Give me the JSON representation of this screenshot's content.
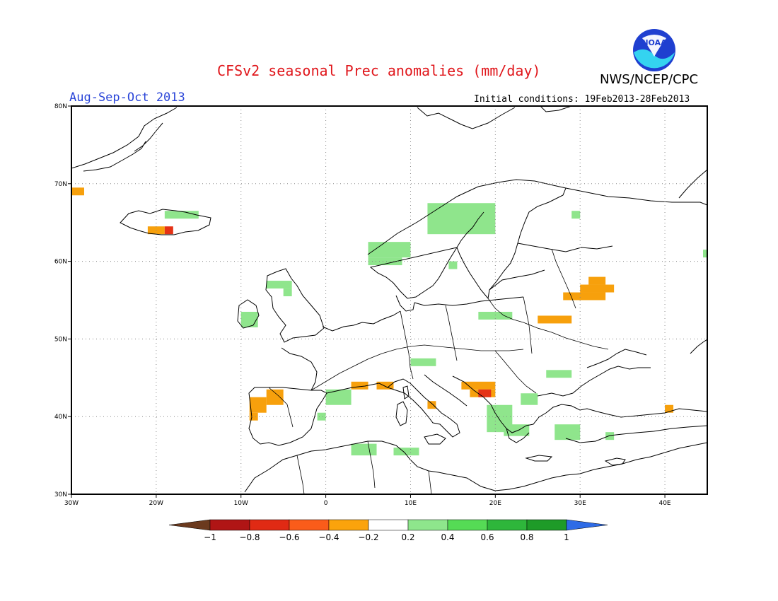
{
  "header": {
    "title": "CFSv2 seasonal Prec anomalies (mm/day)",
    "agency": "NWS/NCEP/CPC",
    "logo_text": "NOAA",
    "period": "Aug-Sep-Oct 2013",
    "initial_conditions": "Initial conditions: 19Feb2013-28Feb2013"
  },
  "map": {
    "projection": "lat-lon",
    "lon_range": [
      -30,
      45
    ],
    "lat_range": [
      30,
      80
    ],
    "lat_ticks": [
      "80N",
      "70N",
      "60N",
      "50N",
      "40N",
      "30N"
    ],
    "lon_ticks": [
      "30W",
      "20W",
      "10W",
      "0",
      "10E",
      "20E",
      "30E",
      "40E"
    ],
    "gridlines": "dotted"
  },
  "colorbar": {
    "labels": [
      "-1",
      "-0.8",
      "-0.6",
      "-0.4",
      "-0.2",
      "0.2",
      "0.4",
      "0.6",
      "0.8",
      "1"
    ],
    "colors": [
      "#6b3a1e",
      "#b31414",
      "#e0240f",
      "#fa5a14",
      "#fba00a",
      "#ffffff",
      "#8ee68c",
      "#55db55",
      "#2db43a",
      "#1e9b28",
      "#2e6be6"
    ]
  },
  "chart_data": {
    "type": "heatmap",
    "variable": "Prec anomalies (mm/day)",
    "anomaly_cells": [
      {
        "lon": [
          -30,
          -28.5
        ],
        "lat": [
          68.5,
          69.5
        ],
        "class": "-0.4"
      },
      {
        "lon": [
          -21,
          -19
        ],
        "lat": [
          63.5,
          64.5
        ],
        "class": "-0.4"
      },
      {
        "lon": [
          -19,
          -18
        ],
        "lat": [
          63.5,
          64.5
        ],
        "class": "-0.6"
      },
      {
        "lon": [
          -19,
          -15
        ],
        "lat": [
          65.5,
          66.5
        ],
        "class": "0.2"
      },
      {
        "lon": [
          -7,
          -5
        ],
        "lat": [
          41.5,
          43.5
        ],
        "class": "-0.4"
      },
      {
        "lon": [
          -9,
          -7
        ],
        "lat": [
          40.5,
          42.5
        ],
        "class": "-0.4"
      },
      {
        "lon": [
          -9,
          -8
        ],
        "lat": [
          39.5,
          40.5
        ],
        "class": "-0.4"
      },
      {
        "lon": [
          3,
          5
        ],
        "lat": [
          43.5,
          44.5
        ],
        "class": "-0.4"
      },
      {
        "lon": [
          6,
          8
        ],
        "lat": [
          43.5,
          44.5
        ],
        "class": "-0.4"
      },
      {
        "lon": [
          12,
          13
        ],
        "lat": [
          41,
          42
        ],
        "class": "-0.4"
      },
      {
        "lon": [
          16,
          20
        ],
        "lat": [
          43.5,
          44.5
        ],
        "class": "-0.4"
      },
      {
        "lon": [
          17,
          20
        ],
        "lat": [
          42.5,
          43.5
        ],
        "class": "-0.4"
      },
      {
        "lon": [
          18,
          19.5
        ],
        "lat": [
          42.5,
          43.5
        ],
        "class": "-0.6"
      },
      {
        "lon": [
          25,
          29
        ],
        "lat": [
          52,
          53
        ],
        "class": "-0.4"
      },
      {
        "lon": [
          28,
          33
        ],
        "lat": [
          55,
          56
        ],
        "class": "-0.4"
      },
      {
        "lon": [
          30,
          34
        ],
        "lat": [
          56,
          57
        ],
        "class": "-0.4"
      },
      {
        "lon": [
          31,
          33
        ],
        "lat": [
          57,
          58
        ],
        "class": "-0.4"
      },
      {
        "lon": [
          40,
          41
        ],
        "lat": [
          40.5,
          41.5
        ],
        "class": "-0.4"
      },
      {
        "lon": [
          -10,
          -8
        ],
        "lat": [
          51.5,
          53.5
        ],
        "class": "0.2"
      },
      {
        "lon": [
          -7,
          -4
        ],
        "lat": [
          56.5,
          57.5
        ],
        "class": "0.2"
      },
      {
        "lon": [
          -5,
          -4
        ],
        "lat": [
          55.5,
          56.5
        ],
        "class": "0.2"
      },
      {
        "lon": [
          12,
          20
        ],
        "lat": [
          63.5,
          67.5
        ],
        "class": "0.2"
      },
      {
        "lon": [
          5,
          10
        ],
        "lat": [
          60.5,
          62.5
        ],
        "class": "0.2"
      },
      {
        "lon": [
          5,
          9
        ],
        "lat": [
          59.5,
          60.5
        ],
        "class": "0.2"
      },
      {
        "lon": [
          14.5,
          15.5
        ],
        "lat": [
          59,
          60
        ],
        "class": "0.2"
      },
      {
        "lon": [
          29,
          30
        ],
        "lat": [
          65.5,
          66.5
        ],
        "class": "0.2"
      },
      {
        "lon": [
          44.5,
          45
        ],
        "lat": [
          60.5,
          61.5
        ],
        "class": "0.2"
      },
      {
        "lon": [
          18,
          22
        ],
        "lat": [
          52.5,
          53.5
        ],
        "class": "0.2"
      },
      {
        "lon": [
          10,
          13
        ],
        "lat": [
          46.5,
          47.5
        ],
        "class": "0.2"
      },
      {
        "lon": [
          26,
          29
        ],
        "lat": [
          45,
          46
        ],
        "class": "0.2"
      },
      {
        "lon": [
          0,
          3
        ],
        "lat": [
          41.5,
          43.5
        ],
        "class": "0.2"
      },
      {
        "lon": [
          -1,
          0
        ],
        "lat": [
          39.5,
          40.5
        ],
        "class": "0.2"
      },
      {
        "lon": [
          3,
          6
        ],
        "lat": [
          35,
          36.5
        ],
        "class": "0.2"
      },
      {
        "lon": [
          8,
          11
        ],
        "lat": [
          35,
          36
        ],
        "class": "0.2"
      },
      {
        "lon": [
          19,
          22
        ],
        "lat": [
          38,
          41.5
        ],
        "class": "0.2"
      },
      {
        "lon": [
          21,
          24
        ],
        "lat": [
          37.5,
          39
        ],
        "class": "0.2"
      },
      {
        "lon": [
          23,
          25
        ],
        "lat": [
          41.5,
          43
        ],
        "class": "0.2"
      },
      {
        "lon": [
          27,
          30
        ],
        "lat": [
          37,
          39
        ],
        "class": "0.2"
      },
      {
        "lon": [
          33,
          34
        ],
        "lat": [
          37,
          38
        ],
        "class": "0.2"
      }
    ]
  }
}
